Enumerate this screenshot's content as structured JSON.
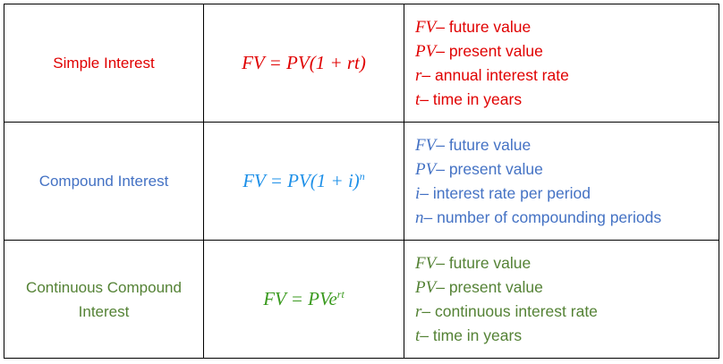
{
  "table": {
    "rows": [
      {
        "name": "Simple Interest",
        "color": "#e00000",
        "formula_color": "#e00000",
        "formula": {
          "base": "FV = PV(1 + rt)"
        },
        "definitions": [
          {
            "symbol": "FV",
            "text": "– future value"
          },
          {
            "symbol": "PV",
            "text": "– present value"
          },
          {
            "symbol": "r",
            "text": "– annual interest rate"
          },
          {
            "symbol": "t",
            "text": "– time in years"
          }
        ]
      },
      {
        "name": "Compound Interest",
        "color": "#4472c4",
        "formula_color": "#1e90e8",
        "formula": {
          "base": "FV = PV(1 + i)",
          "exponent": "n"
        },
        "definitions": [
          {
            "symbol": "FV",
            "text": "– future value"
          },
          {
            "symbol": "PV",
            "text": "– present value"
          },
          {
            "symbol": "i",
            "text": "– interest rate per period"
          },
          {
            "symbol": "n",
            "text": "– number of compounding periods"
          }
        ]
      },
      {
        "name": "Continuous Compound Interest",
        "color": "#548235",
        "formula_color": "#3a9a1e",
        "formula": {
          "base": "FV = PVe",
          "exponent": "rt"
        },
        "definitions": [
          {
            "symbol": "FV",
            "text": "– future value"
          },
          {
            "symbol": "PV",
            "text": "– present value"
          },
          {
            "symbol": "r",
            "text": "– continuous interest rate"
          },
          {
            "symbol": "t",
            "text": "– time in years"
          }
        ]
      }
    ]
  }
}
